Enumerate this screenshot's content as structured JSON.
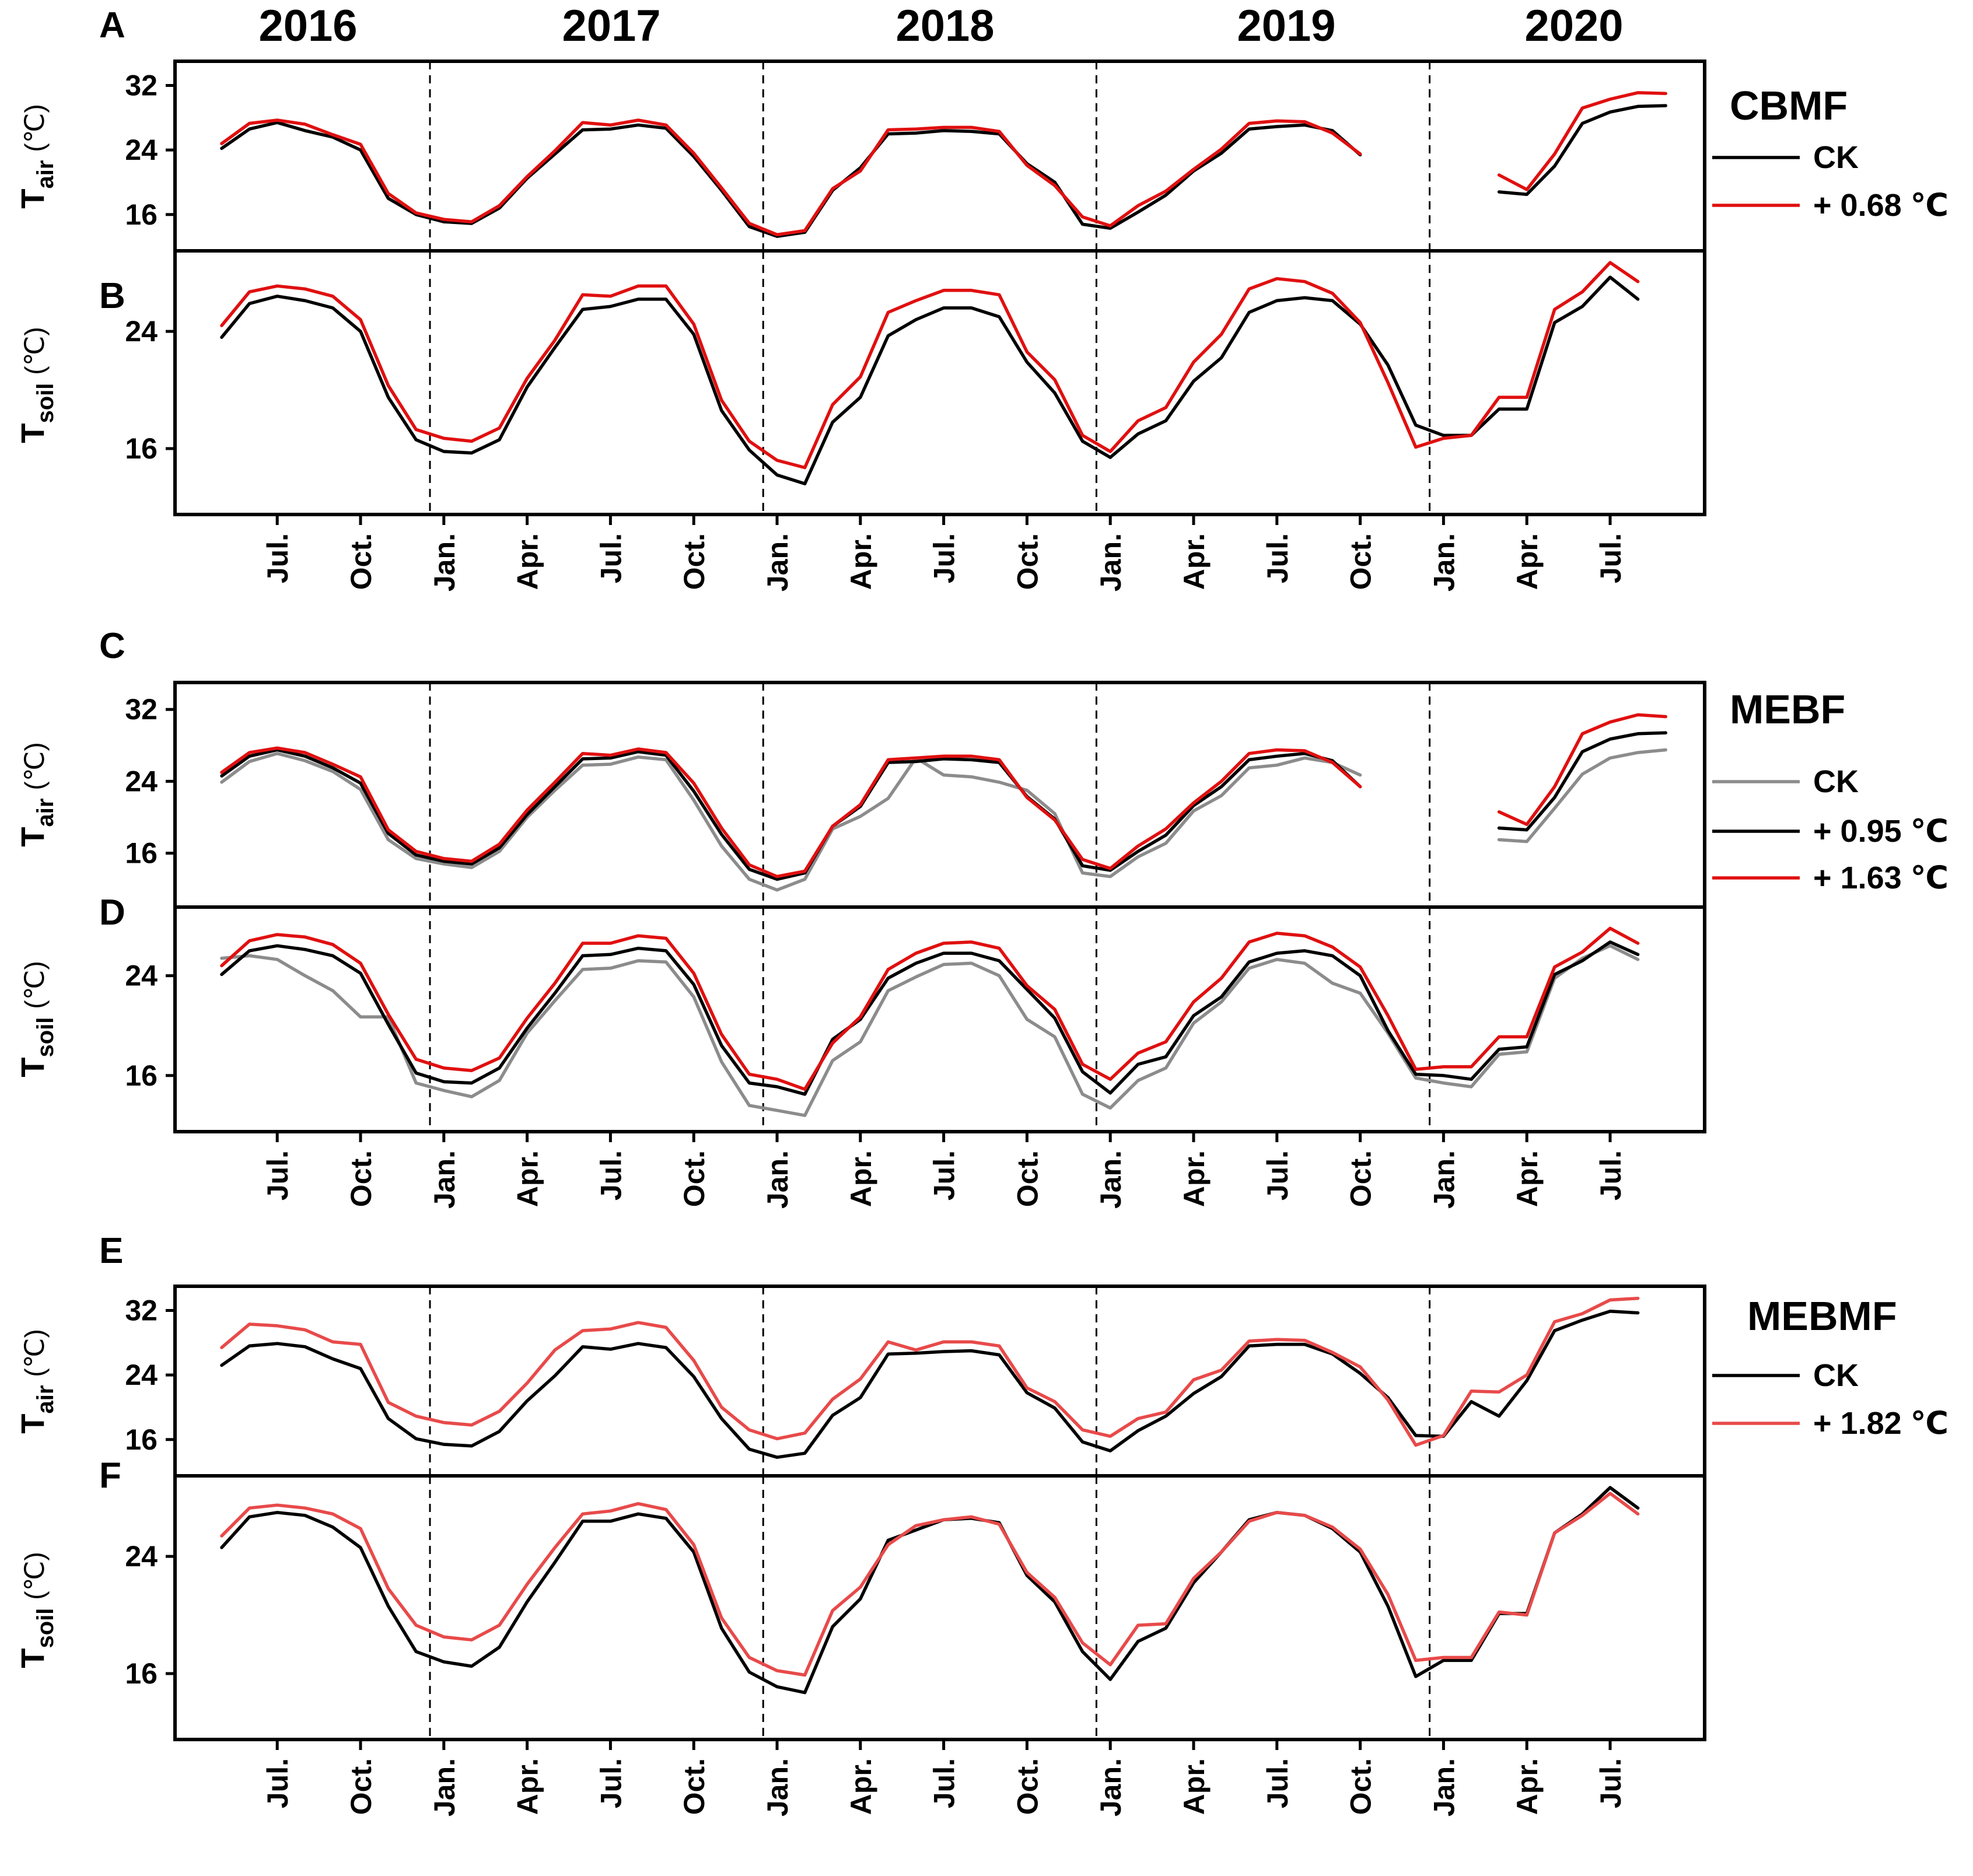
{
  "colors": {
    "ck_black": "#000000",
    "ck_gray": "#8c8c8c",
    "red": "#e01010",
    "red_light": "#e84a4a"
  },
  "years": [
    "2016",
    "2017",
    "2018",
    "2019",
    "2020"
  ],
  "x_tick_labels": [
    "Jul.",
    "Oct.",
    "Jan.",
    "Apr.",
    "Jul.",
    "Oct.",
    "Jan.",
    "Apr.",
    "Jul.",
    "Oct.",
    "Jan.",
    "Apr.",
    "Jul.",
    "Oct.",
    "Jan.",
    "Apr.",
    "Jul."
  ],
  "y_axis_labels": {
    "air": {
      "main": "T",
      "sub": "air",
      "unit": "(℃)"
    },
    "soil": {
      "main": "T",
      "sub": "soil",
      "unit": "(℃)"
    }
  },
  "sites": [
    {
      "title": "CBMF",
      "legend": [
        "CK",
        "+ 0.68 ℃"
      ]
    },
    {
      "title": "MEBF",
      "legend": [
        "CK",
        "+ 0.95 ℃",
        "+ 1.63 ℃"
      ]
    },
    {
      "title": "MEBMF",
      "legend": [
        "CK",
        "+ 1.82 ℃"
      ]
    }
  ],
  "chart_data": [
    {
      "panel": "A",
      "type": "line",
      "site": "CBMF",
      "ylabel": "Tair (℃)",
      "x_months": "2016-05 to 2020-08",
      "ylim": [
        11.5,
        35
      ],
      "yticks": [
        16,
        24,
        32
      ],
      "series": [
        {
          "name": "CK",
          "color": "#000000",
          "values": [
            24.2,
            26.6,
            27.4,
            26.4,
            25.6,
            24,
            18,
            16,
            15.1,
            14.9,
            16.8,
            20.5,
            23.5,
            26.5,
            26.6,
            27.1,
            26.7,
            23.2,
            19,
            14.5,
            13.3,
            13.8,
            19,
            21.8,
            26,
            26.1,
            26.4,
            26.3,
            26,
            22.3,
            20,
            14.8,
            14.3,
            16.3,
            18.4,
            21.4,
            23.6,
            26.6,
            26.9,
            27.1,
            26.4,
            23.4,
            null,
            null,
            null,
            null,
            18.8,
            18.5,
            22,
            27.3,
            28.7,
            29.4,
            29.5
          ]
        },
        {
          "name": "+ 0.68 ℃",
          "color": "#e01010",
          "values": [
            24.8,
            27.3,
            27.7,
            27.2,
            25.9,
            24.7,
            18.6,
            16.2,
            15.4,
            15.1,
            17.1,
            20.7,
            23.9,
            27.4,
            27.1,
            27.7,
            27.1,
            23.6,
            19.3,
            14.9,
            13.5,
            14,
            19.2,
            21.4,
            26.5,
            26.6,
            26.8,
            26.8,
            26.3,
            22.1,
            19.6,
            15.7,
            14.6,
            17.1,
            18.9,
            21.6,
            24.1,
            27.3,
            27.6,
            27.5,
            26.1,
            23.5,
            null,
            null,
            null,
            null,
            20.9,
            19.1,
            23.5,
            29.2,
            30.3,
            31.1,
            31
          ]
        }
      ]
    },
    {
      "panel": "B",
      "type": "line",
      "site": "CBMF",
      "ylabel": "Tsoil (℃)",
      "x_months": "2016-05 to 2020-08",
      "ylim": [
        11.5,
        29.5
      ],
      "yticks": [
        16,
        24
      ],
      "series": [
        {
          "name": "CK",
          "color": "#000000",
          "values": [
            23.6,
            25.9,
            26.4,
            26.1,
            25.6,
            24,
            19.5,
            16.6,
            15.8,
            15.7,
            16.6,
            20.2,
            22.9,
            25.5,
            25.7,
            26.2,
            26.2,
            23.8,
            18.6,
            15.9,
            14.2,
            13.6,
            17.8,
            19.5,
            23.7,
            24.8,
            25.6,
            25.6,
            25,
            21.9,
            19.8,
            16.5,
            15.4,
            17,
            17.9,
            20.6,
            22.2,
            25.3,
            26.1,
            26.3,
            26.1,
            24.5,
            21.7,
            17.6,
            16.9,
            16.9,
            18.7,
            18.7,
            24.6,
            25.7,
            27.7,
            26.2
          ]
        },
        {
          "name": "+ 0.68 ℃",
          "color": "#e01010",
          "values": [
            24.4,
            26.7,
            27.1,
            26.9,
            26.4,
            24.8,
            20.3,
            17.3,
            16.7,
            16.5,
            17.4,
            20.8,
            23.4,
            26.5,
            26.4,
            27.1,
            27.1,
            24.5,
            19.3,
            16.5,
            15.2,
            14.7,
            19,
            20.9,
            25.3,
            26.1,
            26.8,
            26.8,
            26.5,
            22.6,
            20.7,
            16.9,
            15.8,
            17.9,
            18.8,
            21.9,
            23.8,
            26.9,
            27.6,
            27.4,
            26.6,
            24.6,
            20.5,
            16.1,
            16.7,
            16.9,
            19.5,
            19.5,
            25.5,
            26.7,
            28.7,
            27.4
          ]
        }
      ]
    },
    {
      "panel": "C",
      "type": "line",
      "site": "MEBF",
      "ylabel": "Tair (℃)",
      "x_months": "2016-05 to 2020-08",
      "ylim": [
        10,
        35
      ],
      "yticks": [
        16,
        24,
        32
      ],
      "series": [
        {
          "name": "CK",
          "color": "#8c8c8c",
          "values": [
            23.9,
            26.2,
            27.1,
            26.3,
            25.1,
            23.1,
            17.5,
            15.4,
            14.8,
            14.4,
            16.2,
            20,
            23,
            25.8,
            25.9,
            26.7,
            26.4,
            21.9,
            16.8,
            13.1,
            11.9,
            13.1,
            18.7,
            20.1,
            22.1,
            26.6,
            24.7,
            24.5,
            23.9,
            23,
            20.4,
            13.8,
            13.4,
            15.6,
            17.1,
            20.7,
            22.4,
            25.5,
            25.8,
            26.6,
            26.1,
            24.7,
            null,
            null,
            null,
            null,
            17.5,
            17.3,
            21,
            24.8,
            26.6,
            27.2,
            27.5
          ]
        },
        {
          "name": "+ 0.95 ℃",
          "color": "#000000",
          "values": [
            24.6,
            26.8,
            27.5,
            26.8,
            25.5,
            23.8,
            18.2,
            15.8,
            15.1,
            14.8,
            16.6,
            20.3,
            23.4,
            26.5,
            26.6,
            27.3,
            26.9,
            22.9,
            18.1,
            14.2,
            13.1,
            13.8,
            19,
            21.2,
            26.1,
            26.2,
            26.5,
            26.4,
            26.1,
            22.3,
            19.8,
            14.6,
            14.1,
            16.2,
            18,
            21.3,
            23.4,
            26.4,
            26.8,
            27.1,
            26.3,
            23.4,
            null,
            null,
            null,
            null,
            18.8,
            18.6,
            22.2,
            27.3,
            28.7,
            29.3,
            29.4
          ]
        },
        {
          "name": "+ 1.63 ℃",
          "color": "#e01010",
          "values": [
            25,
            27.2,
            27.7,
            27.2,
            25.9,
            24.5,
            18.6,
            16.2,
            15.4,
            15.1,
            17,
            20.8,
            23.9,
            27.1,
            26.9,
            27.6,
            27.2,
            23.8,
            18.8,
            14.7,
            13.4,
            14,
            19,
            21.4,
            26.4,
            26.6,
            26.8,
            26.8,
            26.4,
            22.2,
            19.7,
            15.3,
            14.3,
            16.8,
            18.7,
            21.6,
            24,
            27.1,
            27.5,
            27.4,
            26.1,
            23.4,
            null,
            null,
            null,
            null,
            20.6,
            19.2,
            23.4,
            29.3,
            30.6,
            31.4,
            31.2
          ]
        }
      ]
    },
    {
      "panel": "D",
      "type": "line",
      "site": "MEBF",
      "ylabel": "Tsoil (℃)",
      "x_months": "2016-05 to 2020-08",
      "ylim": [
        11.5,
        29.5
      ],
      "yticks": [
        16,
        24
      ],
      "series": [
        {
          "name": "CK",
          "color": "#8c8c8c",
          "values": [
            25.4,
            25.6,
            25.3,
            24,
            22.8,
            20.7,
            20.7,
            15.4,
            14.8,
            14.3,
            15.6,
            19.4,
            22,
            24.5,
            24.6,
            25.2,
            25.1,
            22.3,
            17.1,
            13.6,
            13.2,
            12.8,
            17.2,
            18.7,
            22.8,
            23.9,
            24.9,
            25,
            24,
            20.5,
            19.1,
            14.5,
            13.4,
            15.6,
            16.6,
            20.2,
            21.9,
            24.6,
            25.3,
            25,
            23.4,
            22.6,
            19.4,
            15.8,
            15.4,
            15.1,
            17.7,
            17.9,
            23.8,
            25.4,
            26.4,
            25.3
          ]
        },
        {
          "name": "+ 0.95 ℃",
          "color": "#000000",
          "values": [
            24.1,
            26,
            26.4,
            26.1,
            25.6,
            24.2,
            20.1,
            16.2,
            15.5,
            15.4,
            16.6,
            19.8,
            22.6,
            25.6,
            25.7,
            26.2,
            26,
            23.3,
            18.4,
            15.4,
            15.1,
            14.5,
            18.9,
            20.5,
            23.8,
            25,
            25.8,
            25.8,
            25.2,
            22.9,
            20.6,
            16.3,
            14.6,
            16.9,
            17.5,
            20.8,
            22.3,
            25.1,
            25.8,
            26,
            25.6,
            24,
            19.6,
            16.1,
            16,
            15.7,
            18.1,
            18.3,
            24.1,
            25.2,
            26.7,
            25.7
          ]
        },
        {
          "name": "+ 1.63 ℃",
          "color": "#e01010",
          "values": [
            24.8,
            26.8,
            27.3,
            27.1,
            26.5,
            25,
            20.9,
            17.3,
            16.6,
            16.4,
            17.4,
            20.6,
            23.4,
            26.6,
            26.6,
            27.2,
            27,
            24.2,
            19.3,
            16.1,
            15.7,
            14.9,
            18.6,
            20.7,
            24.5,
            25.8,
            26.6,
            26.7,
            26.2,
            23.2,
            21.3,
            16.9,
            15.7,
            17.8,
            18.7,
            21.9,
            23.8,
            26.7,
            27.4,
            27.2,
            26.3,
            24.7,
            20.8,
            16.5,
            16.7,
            16.7,
            19.1,
            19.1,
            24.7,
            25.9,
            27.8,
            26.6
          ]
        }
      ]
    },
    {
      "panel": "E",
      "type": "line",
      "site": "MEBMF",
      "ylabel": "Tair (℃)",
      "x_months": "2016-05 to 2020-08",
      "ylim": [
        11.5,
        35
      ],
      "yticks": [
        16,
        24,
        32
      ],
      "series": [
        {
          "name": "CK",
          "color": "#000000",
          "values": [
            25.2,
            27.6,
            27.9,
            27.5,
            26,
            24.8,
            18.6,
            16.1,
            15.4,
            15.2,
            17,
            20.8,
            23.9,
            27.5,
            27.2,
            27.9,
            27.4,
            23.8,
            18.6,
            14.8,
            13.8,
            14.3,
            19,
            21.2,
            26.6,
            26.7,
            26.9,
            27,
            26.5,
            21.8,
            19.9,
            15.7,
            14.6,
            17.1,
            18.9,
            21.7,
            23.8,
            27.6,
            27.8,
            27.8,
            26.6,
            24.2,
            21.2,
            16.5,
            16.4,
            20.7,
            18.9,
            23.3,
            29.5,
            30.8,
            31.9,
            31.7
          ]
        },
        {
          "name": "+ 1.82 ℃",
          "color": "#e84a4a",
          "values": [
            27.4,
            30.3,
            30.1,
            29.6,
            28.1,
            27.8,
            20.6,
            18.9,
            18.1,
            17.8,
            19.5,
            23,
            27.1,
            29.5,
            29.7,
            30.5,
            29.9,
            25.8,
            20,
            17.2,
            16.1,
            16.8,
            21,
            23.5,
            28.1,
            27.1,
            28.1,
            28.1,
            27.6,
            22.4,
            20.7,
            17.2,
            16.4,
            18.6,
            19.4,
            23.4,
            24.6,
            28.2,
            28.4,
            28.3,
            26.8,
            25,
            20.9,
            15.3,
            16.5,
            22,
            21.9,
            24,
            30.6,
            31.6,
            33.3,
            33.5
          ]
        }
      ]
    },
    {
      "panel": "F",
      "type": "line",
      "site": "MEBMF",
      "ylabel": "Tsoil (℃)",
      "x_months": "2016-05 to 2020-08",
      "ylim": [
        11.5,
        29.5
      ],
      "yticks": [
        16,
        24
      ],
      "series": [
        {
          "name": "CK",
          "color": "#000000",
          "values": [
            24.6,
            26.7,
            27,
            26.8,
            26,
            24.6,
            20.6,
            17.5,
            16.8,
            16.5,
            17.8,
            20.9,
            23.6,
            26.4,
            26.4,
            26.9,
            26.6,
            24.3,
            19.1,
            16.1,
            15.1,
            14.7,
            19.2,
            21.1,
            25.1,
            25.8,
            26.5,
            26.6,
            26.3,
            22.7,
            20.9,
            17.5,
            15.6,
            18.2,
            19.1,
            22.2,
            24.3,
            26.5,
            27,
            26.8,
            25.9,
            24.3,
            20.6,
            15.8,
            16.9,
            16.9,
            20.1,
            20.1,
            25.6,
            26.9,
            28.7,
            27.3
          ]
        },
        {
          "name": "+ 1.82 ℃",
          "color": "#e84a4a",
          "values": [
            25.4,
            27.3,
            27.5,
            27.3,
            26.9,
            25.9,
            21.8,
            19.3,
            18.5,
            18.3,
            19.3,
            22.1,
            24.6,
            26.9,
            27.1,
            27.6,
            27.2,
            24.8,
            19.8,
            17.1,
            16.2,
            15.9,
            20.3,
            21.9,
            24.8,
            26.1,
            26.5,
            26.7,
            26.2,
            22.9,
            21.2,
            18.1,
            16.6,
            19.3,
            19.4,
            22.5,
            24.3,
            26.4,
            27,
            26.8,
            26,
            24.5,
            21.4,
            16.9,
            17.1,
            17.1,
            20.2,
            20,
            25.6,
            26.8,
            28.3,
            26.9
          ]
        }
      ]
    }
  ]
}
